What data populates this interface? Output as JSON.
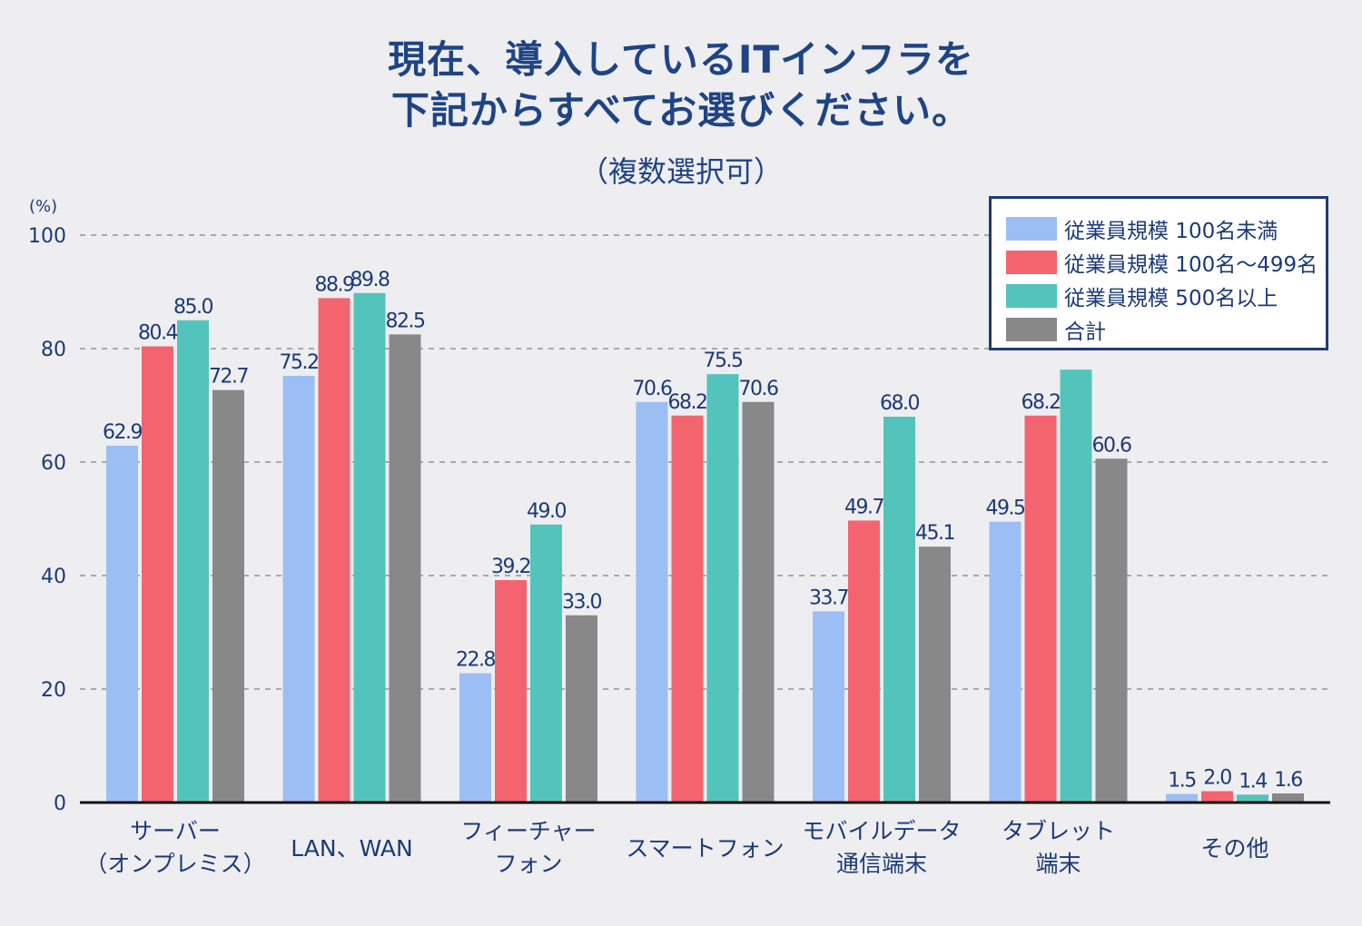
{
  "chart_data": {
    "type": "bar",
    "title": [
      "現在、導入しているITインフラを",
      "下記からすべてお選びください。"
    ],
    "subtitle": "（複数選択可）",
    "ylabel": "(%)",
    "xlabel": "",
    "ylim": [
      0,
      100
    ],
    "yticks": [
      0,
      20,
      40,
      60,
      80,
      100
    ],
    "grid": true,
    "legend_position": "top-right",
    "categories": [
      [
        "サーバー",
        "（オンプレミス）"
      ],
      [
        "LAN、WAN"
      ],
      [
        "フィーチャー",
        "フォン"
      ],
      [
        "スマートフォン"
      ],
      [
        "モバイルデータ",
        "通信端末"
      ],
      [
        "タブレット",
        "端末"
      ],
      [
        "その他"
      ]
    ],
    "series": [
      {
        "name": "従業員規模 100名未満",
        "color": "#9bbff5",
        "values": [
          62.9,
          75.2,
          22.8,
          70.6,
          33.7,
          49.5,
          1.5
        ],
        "labels": [
          "62.9",
          "75.2",
          "22.8",
          "70.6",
          "33.7",
          "49.5",
          "1.5"
        ]
      },
      {
        "name": "従業員規模 100名～499名",
        "color": "#f4646f",
        "values": [
          80.4,
          88.9,
          39.2,
          68.2,
          49.7,
          68.2,
          2.0
        ],
        "labels": [
          "80.4",
          "88.9",
          "39.2",
          "68.2",
          "49.7",
          "68.2",
          "2.0"
        ]
      },
      {
        "name": "従業員規模 500名以上",
        "color": "#52c4bb",
        "values": [
          85.0,
          89.8,
          49.0,
          75.5,
          68.0,
          76.3,
          1.4
        ],
        "labels": [
          "85.0",
          "89.8",
          "49.0",
          "75.5",
          "68.0",
          null,
          "1.4"
        ]
      },
      {
        "name": "合計",
        "color": "#888888",
        "values": [
          72.7,
          82.5,
          33.0,
          70.6,
          45.1,
          60.6,
          1.6
        ],
        "labels": [
          "72.7",
          "82.5",
          "33.0",
          "70.6",
          "45.1",
          "60.6",
          "1.6"
        ]
      }
    ]
  }
}
